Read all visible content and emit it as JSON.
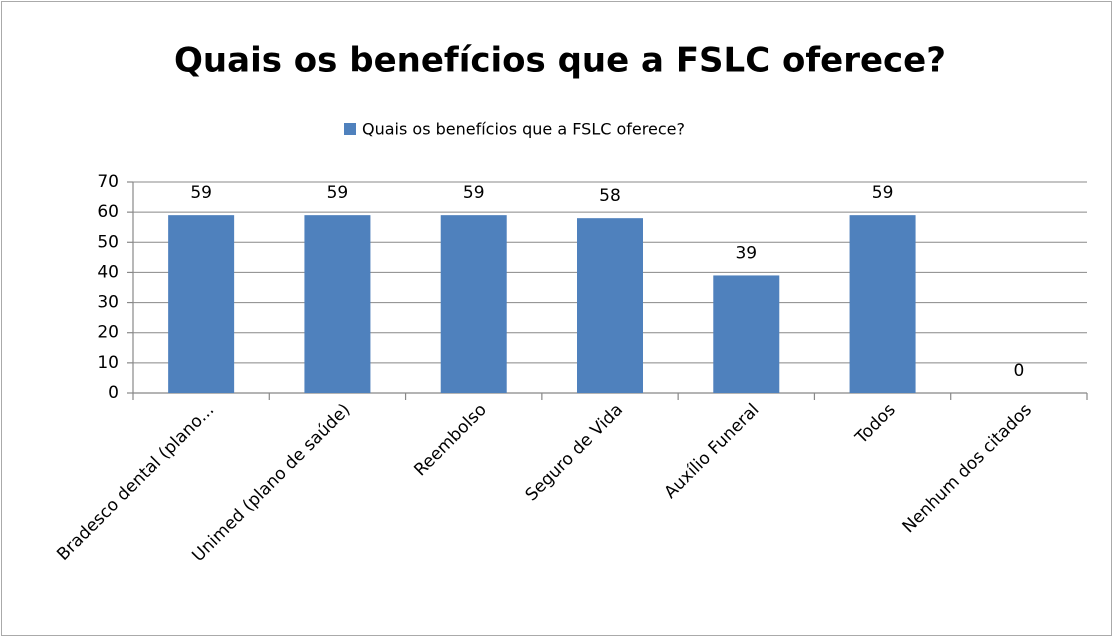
{
  "chart_data": {
    "type": "bar",
    "title": "Quais os benefícios que a FSLC oferece?",
    "categories": [
      "Bradesco dental (plano...",
      "Unimed (plano de saúde)",
      "Reembolso",
      "Seguro de Vida",
      "Auxílio Funeral",
      "Todos",
      "Nenhum dos citados"
    ],
    "series": [
      {
        "name": "Quais os benefícios que a FSLC oferece?",
        "color": "#4f81bd",
        "values": [
          59,
          59,
          59,
          58,
          39,
          59,
          0
        ]
      }
    ],
    "ylim": [
      0,
      70
    ],
    "yticks": [
      0,
      10,
      20,
      30,
      40,
      50,
      60,
      70
    ],
    "grid": true,
    "legend": "top"
  }
}
